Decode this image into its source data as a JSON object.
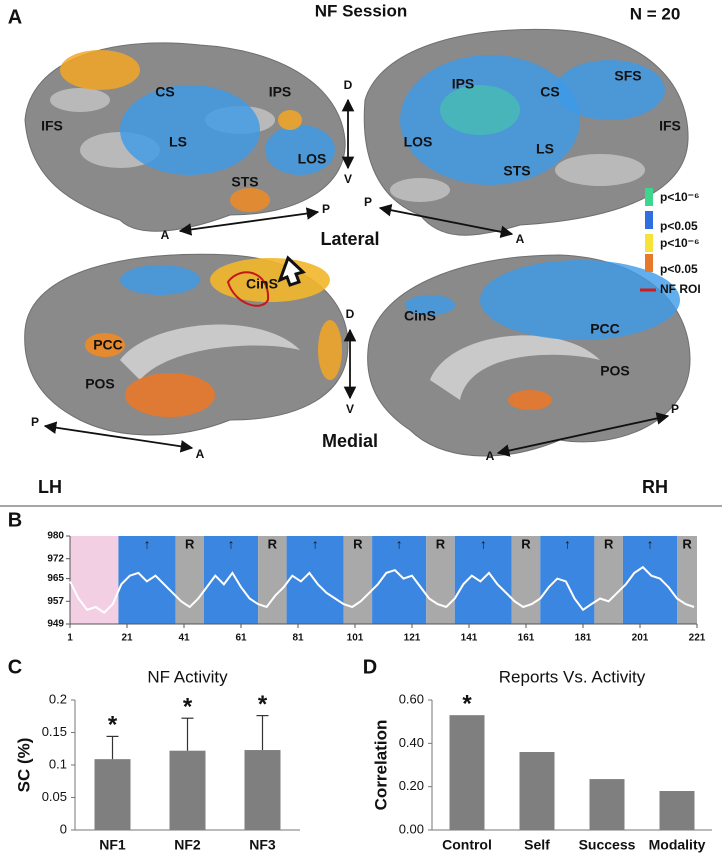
{
  "panel_a": {
    "label": "A",
    "title": "NF Session",
    "n": "N = 20",
    "views": [
      "Lateral",
      "Medial"
    ],
    "hemispheres": [
      "LH",
      "RH"
    ],
    "lateral_lh": [
      "IFS",
      "CS",
      "IPS",
      "LS",
      "LOS",
      "STS"
    ],
    "lateral_rh": [
      "IPS",
      "CS",
      "SFS",
      "LOS",
      "LS",
      "IFS",
      "STS"
    ],
    "medial_lh": [
      "CinS",
      "PCC",
      "POS"
    ],
    "medial_rh": [
      "CinS",
      "PCC",
      "POS"
    ],
    "directions": [
      "D",
      "V",
      "P",
      "A",
      "P",
      "A",
      "D",
      "V",
      "P",
      "A",
      "A",
      "P"
    ],
    "legend": [
      {
        "label": "p<10⁻⁶",
        "color": "#3cd68c"
      },
      {
        "label": "p<0.05",
        "color": "#2f6fe0"
      },
      {
        "label": "p<10⁻⁶",
        "color": "#f5e33a"
      },
      {
        "label": "p<0.05",
        "color": "#e8782a"
      },
      {
        "label": "NF ROI",
        "color": "#d01c1c"
      }
    ]
  },
  "chart_data": [
    {
      "type": "line",
      "panel": "B",
      "blocks": [
        {
          "start": 1,
          "end": 18,
          "color": "#f3cfe3"
        },
        {
          "start": 18,
          "end": 38,
          "label": "↑",
          "color": "#3b86e0"
        },
        {
          "start": 38,
          "end": 48,
          "label": "R",
          "color": "#a9a9a9"
        },
        {
          "start": 48,
          "end": 67,
          "label": "↑",
          "color": "#3b86e0"
        },
        {
          "start": 67,
          "end": 77,
          "label": "R",
          "color": "#a9a9a9"
        },
        {
          "start": 77,
          "end": 97,
          "label": "↑",
          "color": "#3b86e0"
        },
        {
          "start": 97,
          "end": 107,
          "label": "R",
          "color": "#a9a9a9"
        },
        {
          "start": 107,
          "end": 126,
          "label": "↑",
          "color": "#3b86e0"
        },
        {
          "start": 126,
          "end": 136,
          "label": "R",
          "color": "#a9a9a9"
        },
        {
          "start": 136,
          "end": 156,
          "label": "↑",
          "color": "#3b86e0"
        },
        {
          "start": 156,
          "end": 166,
          "label": "R",
          "color": "#a9a9a9"
        },
        {
          "start": 166,
          "end": 185,
          "label": "↑",
          "color": "#3b86e0"
        },
        {
          "start": 185,
          "end": 195,
          "label": "R",
          "color": "#a9a9a9"
        },
        {
          "start": 195,
          "end": 214,
          "label": "↑",
          "color": "#3b86e0"
        },
        {
          "start": 214,
          "end": 221,
          "label": "R",
          "color": "#a9a9a9"
        }
      ],
      "x": [
        1,
        4,
        7,
        10,
        13,
        16,
        19,
        22,
        25,
        28,
        31,
        34,
        37,
        40,
        43,
        46,
        49,
        52,
        55,
        58,
        61,
        64,
        67,
        70,
        73,
        76,
        79,
        82,
        85,
        88,
        91,
        94,
        97,
        100,
        103,
        106,
        109,
        112,
        115,
        118,
        121,
        124,
        127,
        130,
        133,
        136,
        139,
        142,
        145,
        148,
        151,
        154,
        157,
        160,
        163,
        166,
        169,
        172,
        175,
        178,
        181,
        184,
        187,
        190,
        193,
        196,
        199,
        202,
        205,
        208,
        211,
        214,
        217,
        220
      ],
      "values": [
        964,
        958,
        954,
        955,
        953,
        956,
        963,
        966,
        967,
        964,
        966,
        963,
        960,
        957,
        955,
        958,
        962,
        966,
        963,
        967,
        962,
        958,
        956,
        955,
        959,
        962,
        966,
        964,
        967,
        963,
        960,
        958,
        956,
        955,
        957,
        960,
        963,
        967,
        968,
        965,
        966,
        962,
        958,
        956,
        955,
        958,
        963,
        966,
        964,
        967,
        963,
        960,
        957,
        955,
        956,
        958,
        962,
        965,
        964,
        958,
        954,
        956,
        958,
        957,
        960,
        963,
        967,
        969,
        966,
        965,
        962,
        958,
        956,
        955
      ],
      "color": "#ffffff",
      "xlim": [
        1,
        221
      ],
      "xticks": [
        1,
        21,
        41,
        61,
        81,
        101,
        121,
        141,
        161,
        181,
        201,
        221
      ],
      "ylim": [
        949,
        980
      ],
      "yticks": [
        949,
        957,
        965,
        972,
        980
      ]
    },
    {
      "type": "bar",
      "panel": "C",
      "title": "NF Activity",
      "y_label": "SC (%)",
      "categories": [
        "NF1",
        "NF2",
        "NF3"
      ],
      "values": [
        0.109,
        0.122,
        0.123
      ],
      "errors": [
        0.035,
        0.05,
        0.053
      ],
      "annotations": [
        "*",
        "*",
        "*"
      ],
      "color": "#7f7f7f",
      "ylim": [
        0,
        0.2
      ],
      "yticks": [
        0,
        0.05,
        0.1,
        0.15,
        0.2
      ]
    },
    {
      "type": "bar",
      "panel": "D",
      "title": "Reports Vs. Activity",
      "y_label": "Correlation",
      "categories": [
        "Control",
        "Self",
        "Success",
        "Modality"
      ],
      "values": [
        0.53,
        0.36,
        0.235,
        0.18
      ],
      "annotations": [
        "*",
        null,
        null,
        null
      ],
      "color": "#7f7f7f",
      "ylim": [
        0,
        0.6
      ],
      "yticks": [
        {
          "value": 0,
          "label": "0.00"
        },
        {
          "value": 0.2,
          "label": "0.20"
        },
        {
          "value": 0.4,
          "label": "0.40"
        },
        {
          "value": 0.6,
          "label": "0.60"
        }
      ]
    }
  ]
}
